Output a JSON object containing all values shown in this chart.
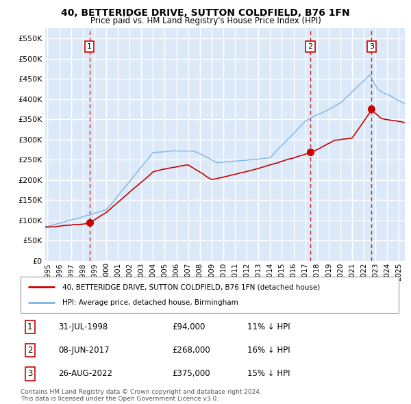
{
  "title": "40, BETTERIDGE DRIVE, SUTTON COLDFIELD, B76 1FN",
  "subtitle": "Price paid vs. HM Land Registry's House Price Index (HPI)",
  "legend_label_red": "40, BETTERIDGE DRIVE, SUTTON COLDFIELD, B76 1FN (detached house)",
  "legend_label_blue": "HPI: Average price, detached house, Birmingham",
  "transactions": [
    {
      "label": "1",
      "date_str": "31-JUL-1998",
      "year": 1998.58,
      "price": 94000,
      "pct": "11%",
      "dir": "↓"
    },
    {
      "label": "2",
      "date_str": "08-JUN-2017",
      "year": 2017.44,
      "price": 268000,
      "pct": "16%",
      "dir": "↓"
    },
    {
      "label": "3",
      "date_str": "26-AUG-2022",
      "year": 2022.66,
      "price": 375000,
      "pct": "15%",
      "dir": "↓"
    }
  ],
  "table_rows": [
    [
      "1",
      "31-JUL-1998",
      "£94,000",
      "11% ↓ HPI"
    ],
    [
      "2",
      "08-JUN-2017",
      "£268,000",
      "16% ↓ HPI"
    ],
    [
      "3",
      "26-AUG-2022",
      "£375,000",
      "15% ↓ HPI"
    ]
  ],
  "footer": "Contains HM Land Registry data © Crown copyright and database right 2024.\nThis data is licensed under the Open Government Licence v3.0.",
  "plot_bg_color": "#dce9f8",
  "red_color": "#cc0000",
  "blue_color": "#7fb3e0",
  "grid_color": "#ffffff",
  "dashed_line_color": "#cc0000",
  "ylim": [
    0,
    575000
  ],
  "xlim_start": 1994.8,
  "xlim_end": 2025.5,
  "yticks": [
    0,
    50000,
    100000,
    150000,
    200000,
    250000,
    300000,
    350000,
    400000,
    450000,
    500000,
    550000
  ],
  "xticks": [
    1995,
    1996,
    1997,
    1998,
    1999,
    2000,
    2001,
    2002,
    2003,
    2004,
    2005,
    2006,
    2007,
    2008,
    2009,
    2010,
    2011,
    2012,
    2013,
    2014,
    2015,
    2016,
    2017,
    2018,
    2019,
    2020,
    2021,
    2022,
    2023,
    2024,
    2025
  ]
}
